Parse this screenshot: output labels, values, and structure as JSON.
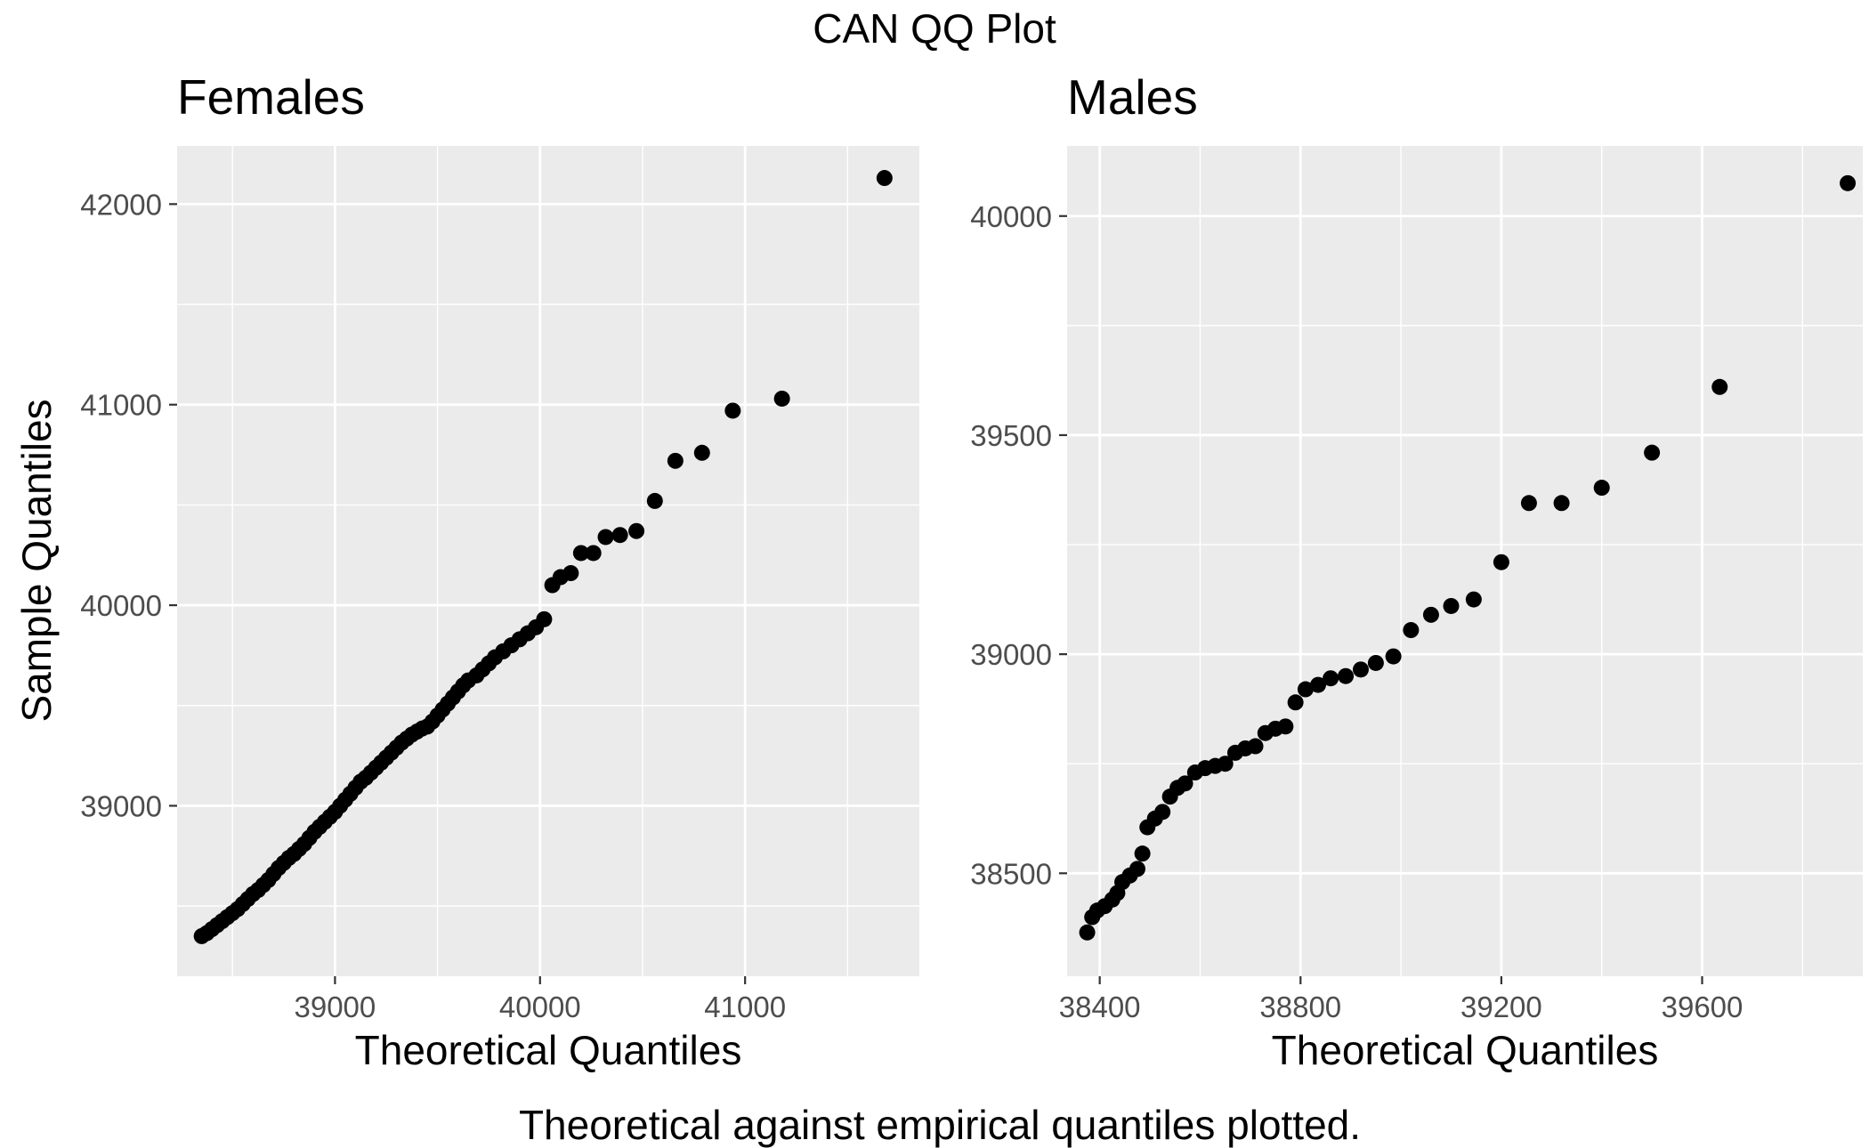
{
  "figure": {
    "title": "CAN QQ Plot",
    "caption": "Theoretical against empirical quantiles plotted.",
    "ylabel": "Sample Quantiles"
  },
  "colors": {
    "panel_background": "#ebebeb",
    "grid": "#ffffff",
    "point": "#000000",
    "tick_text": "#4d4d4d"
  },
  "chart_data": [
    {
      "type": "scatter",
      "title": "Females",
      "xlabel": "Theoretical Quantiles",
      "ylabel": "Sample Quantiles",
      "xlim": [
        38230,
        41850
      ],
      "ylim": [
        38150,
        42290
      ],
      "x_ticks": [
        39000,
        40000,
        41000
      ],
      "y_ticks": [
        39000,
        40000,
        41000,
        42000
      ],
      "grid": true,
      "series": [
        {
          "points": [
            [
              38350,
              38350
            ],
            [
              38375,
              38365
            ],
            [
              38400,
              38385
            ],
            [
              38425,
              38405
            ],
            [
              38450,
              38425
            ],
            [
              38475,
              38445
            ],
            [
              38500,
              38465
            ],
            [
              38525,
              38485
            ],
            [
              38550,
              38510
            ],
            [
              38575,
              38535
            ],
            [
              38600,
              38560
            ],
            [
              38625,
              38580
            ],
            [
              38650,
              38605
            ],
            [
              38675,
              38630
            ],
            [
              38700,
              38660
            ],
            [
              38725,
              38690
            ],
            [
              38750,
              38715
            ],
            [
              38775,
              38740
            ],
            [
              38800,
              38760
            ],
            [
              38825,
              38785
            ],
            [
              38850,
              38810
            ],
            [
              38875,
              38840
            ],
            [
              38900,
              38870
            ],
            [
              38925,
              38895
            ],
            [
              38950,
              38920
            ],
            [
              38975,
              38945
            ],
            [
              39000,
              38970
            ],
            [
              39025,
              39000
            ],
            [
              39050,
              39030
            ],
            [
              39075,
              39060
            ],
            [
              39100,
              39090
            ],
            [
              39125,
              39120
            ],
            [
              39150,
              39140
            ],
            [
              39175,
              39165
            ],
            [
              39200,
              39190
            ],
            [
              39225,
              39215
            ],
            [
              39250,
              39240
            ],
            [
              39275,
              39265
            ],
            [
              39300,
              39290
            ],
            [
              39325,
              39315
            ],
            [
              39350,
              39335
            ],
            [
              39375,
              39355
            ],
            [
              39400,
              39370
            ],
            [
              39425,
              39385
            ],
            [
              39450,
              39395
            ],
            [
              39475,
              39420
            ],
            [
              39500,
              39450
            ],
            [
              39525,
              39480
            ],
            [
              39550,
              39510
            ],
            [
              39575,
              39540
            ],
            [
              39600,
              39570
            ],
            [
              39625,
              39600
            ],
            [
              39650,
              39625
            ],
            [
              39690,
              39650
            ],
            [
              39720,
              39680
            ],
            [
              39750,
              39710
            ],
            [
              39780,
              39740
            ],
            [
              39820,
              39770
            ],
            [
              39860,
              39800
            ],
            [
              39900,
              39830
            ],
            [
              39940,
              39860
            ],
            [
              39980,
              39890
            ],
            [
              40020,
              39930
            ],
            [
              40060,
              40100
            ],
            [
              40100,
              40140
            ],
            [
              40150,
              40160
            ],
            [
              40200,
              40260
            ],
            [
              40260,
              40260
            ],
            [
              40320,
              40340
            ],
            [
              40390,
              40350
            ],
            [
              40470,
              40370
            ],
            [
              40560,
              40520
            ],
            [
              40660,
              40720
            ],
            [
              40790,
              40760
            ],
            [
              40940,
              40970
            ],
            [
              41180,
              41030
            ],
            [
              41680,
              42130
            ]
          ]
        }
      ]
    },
    {
      "type": "scatter",
      "title": "Males",
      "xlabel": "Theoretical Quantiles",
      "ylabel": "",
      "xlim": [
        38335,
        39920
      ],
      "ylim": [
        38265,
        40160
      ],
      "x_ticks": [
        38400,
        38800,
        39200,
        39600
      ],
      "y_ticks": [
        38500,
        39000,
        39500,
        40000
      ],
      "grid": true,
      "series": [
        {
          "points": [
            [
              38375,
              38365
            ],
            [
              38385,
              38400
            ],
            [
              38395,
              38415
            ],
            [
              38410,
              38425
            ],
            [
              38425,
              38440
            ],
            [
              38435,
              38455
            ],
            [
              38445,
              38480
            ],
            [
              38460,
              38495
            ],
            [
              38475,
              38510
            ],
            [
              38485,
              38545
            ],
            [
              38495,
              38605
            ],
            [
              38510,
              38625
            ],
            [
              38525,
              38640
            ],
            [
              38540,
              38675
            ],
            [
              38555,
              38695
            ],
            [
              38570,
              38705
            ],
            [
              38590,
              38730
            ],
            [
              38610,
              38740
            ],
            [
              38630,
              38745
            ],
            [
              38650,
              38750
            ],
            [
              38670,
              38775
            ],
            [
              38690,
              38785
            ],
            [
              38710,
              38790
            ],
            [
              38730,
              38820
            ],
            [
              38750,
              38830
            ],
            [
              38770,
              38835
            ],
            [
              38790,
              38890
            ],
            [
              38810,
              38920
            ],
            [
              38835,
              38930
            ],
            [
              38860,
              38945
            ],
            [
              38890,
              38950
            ],
            [
              38920,
              38965
            ],
            [
              38950,
              38980
            ],
            [
              38985,
              38995
            ],
            [
              39020,
              39055
            ],
            [
              39060,
              39090
            ],
            [
              39100,
              39110
            ],
            [
              39145,
              39125
            ],
            [
              39200,
              39210
            ],
            [
              39255,
              39345
            ],
            [
              39320,
              39345
            ],
            [
              39400,
              39380
            ],
            [
              39500,
              39460
            ],
            [
              39635,
              39610
            ],
            [
              39890,
              40075
            ]
          ]
        }
      ]
    }
  ]
}
